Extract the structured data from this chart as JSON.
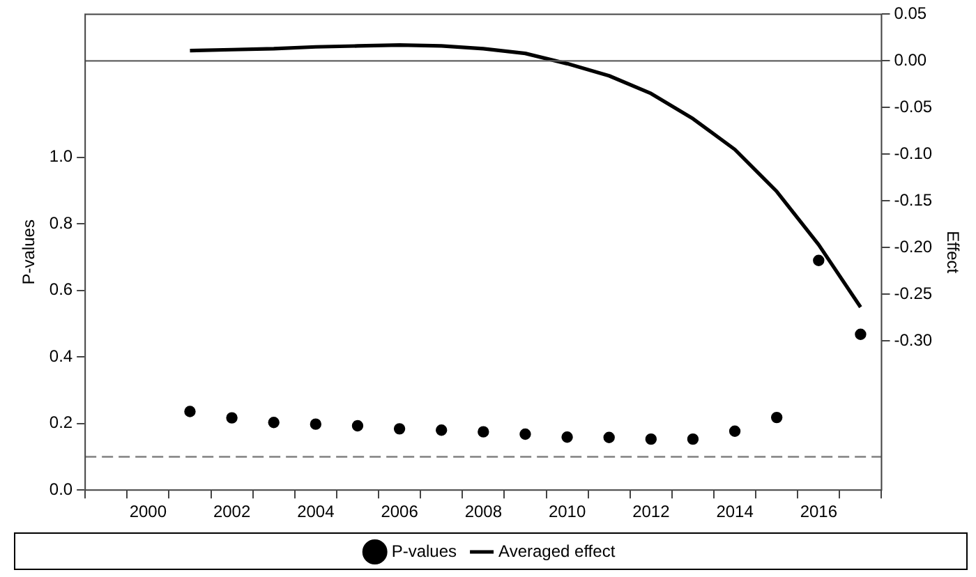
{
  "chart_data": {
    "type": "scatter",
    "xlabel": null,
    "ylabel": "P-values",
    "y2label": "Effect",
    "categories": [
      null,
      "2000",
      null,
      "2002",
      null,
      "2004",
      null,
      "2006",
      null,
      "2008",
      null,
      "2010",
      null,
      "2012",
      null,
      "2014",
      null,
      "2016",
      null
    ],
    "series": [
      {
        "name": "P-values",
        "marker": "circle",
        "color": "#000000",
        "values": [
          null,
          null,
          0.236,
          0.217,
          0.203,
          0.198,
          0.193,
          0.184,
          0.18,
          0.175,
          0.168,
          0.159,
          0.158,
          0.153,
          0.153,
          0.177,
          0.218,
          0.69,
          0.468
        ]
      },
      {
        "name": "Averaged effect",
        "type": "line",
        "axis": "y2",
        "color": "#000000",
        "values": [
          null,
          null,
          0.011,
          0.012,
          0.013,
          0.015,
          0.016,
          0.017,
          0.016,
          0.013,
          0.008,
          -0.003,
          -0.016,
          -0.035,
          -0.062,
          -0.095,
          -0.14,
          -0.197,
          -0.264
        ]
      }
    ],
    "ylim": [
      0,
      1.43
    ],
    "yticks": [
      {
        "value": 0,
        "label": "0.0"
      },
      0.2,
      0.4,
      0.6,
      0.8,
      {
        "value": 1,
        "label": "1.0"
      }
    ],
    "y2lim": [
      -0.46,
      0.05
    ],
    "y2ticks": [
      0.05,
      {
        "value": 0,
        "label": "0.00"
      },
      -0.05,
      {
        "value": -0.1,
        "label": "-0.10"
      },
      -0.15,
      {
        "value": -0.2,
        "label": "-0.20"
      },
      -0.25,
      {
        "value": -0.3,
        "label": "-0.30"
      }
    ],
    "ref_lines": [
      {
        "axis": "y",
        "value": 0.1,
        "line_style": "dashed",
        "color": "#808080"
      },
      {
        "axis": "y2",
        "value": 0,
        "line_style": "solid",
        "color": "#606060"
      }
    ],
    "grid": false,
    "legend": "bottom",
    "line_style": "solid"
  }
}
